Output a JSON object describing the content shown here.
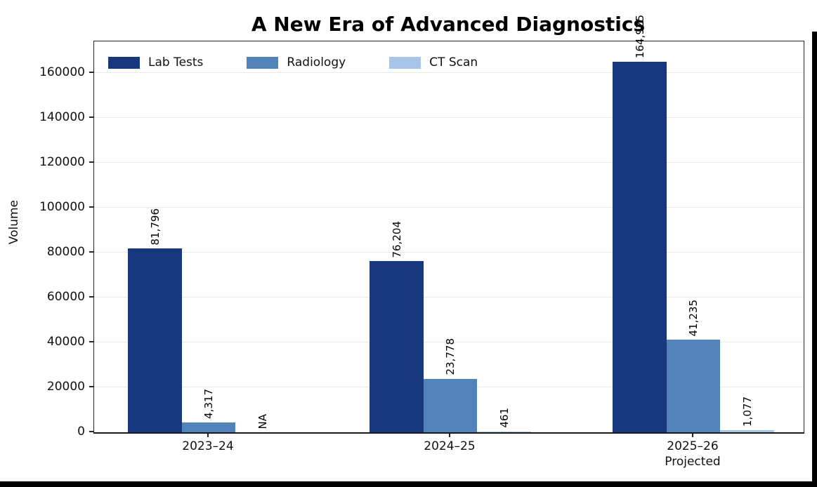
{
  "chart_data": {
    "type": "bar",
    "title": "A New Era of Advanced Diagnostics",
    "ylabel": "Volume",
    "xlabel": "",
    "categories": [
      "2023–24",
      "2024–25",
      "2025–26\nProjected"
    ],
    "series": [
      {
        "name": "Lab Tests",
        "color": "#17387E",
        "values": [
          81796,
          76204,
          164925
        ],
        "labels": [
          "81,796",
          "76,204",
          "164,925"
        ]
      },
      {
        "name": "Radiology",
        "color": "#5282BA",
        "values": [
          4317,
          23778,
          41235
        ],
        "labels": [
          "4,317",
          "23,778",
          "41,235"
        ]
      },
      {
        "name": "CT Scan",
        "color": "#A8C5E7",
        "values": [
          null,
          461,
          1077
        ],
        "labels": [
          "NA",
          "461",
          "1,077"
        ]
      }
    ],
    "ylim": [
      0,
      174000
    ],
    "yticks": [
      0,
      20000,
      40000,
      60000,
      80000,
      100000,
      120000,
      140000,
      160000
    ],
    "ytick_labels": [
      "0",
      "20000",
      "40000",
      "60000",
      "80000",
      "100000",
      "120000",
      "140000",
      "160000"
    ],
    "grid": true,
    "legend_position": "upper left"
  },
  "colors": {
    "grid": "#e9e9e9",
    "spine": "#262626",
    "text": "#111111",
    "frame": "#000000"
  }
}
